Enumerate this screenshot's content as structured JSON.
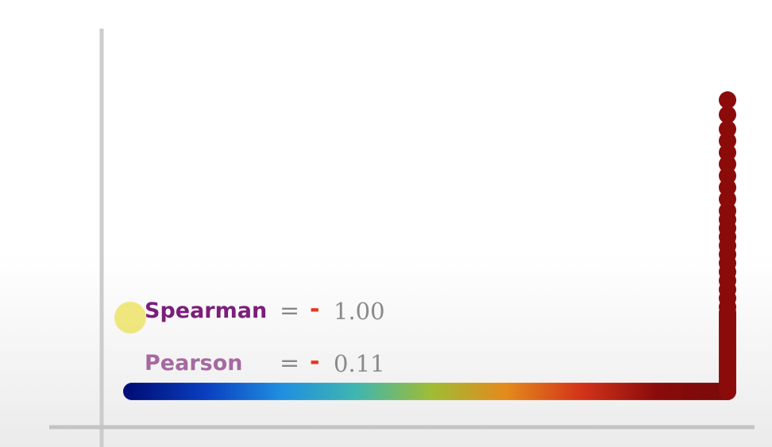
{
  "chart_data": {
    "type": "scatter",
    "title": "",
    "xlabel": "",
    "ylabel": "",
    "grid": false,
    "colormap": [
      "#00107a",
      "#0a3fc0",
      "#1f8fe0",
      "#3fb6b0",
      "#9fbc35",
      "#e48a1c",
      "#d3341a",
      "#8b0b0b",
      "#7a0a0a"
    ],
    "points": {
      "horizontal_segment": {
        "n": 200,
        "x_range": [
          1,
          200
        ],
        "y": 100
      },
      "vertical_tail": {
        "x": 200,
        "y_values": [
          100,
          99,
          98,
          97,
          96,
          95,
          94,
          93,
          92,
          91,
          90,
          89,
          88,
          87,
          86,
          85,
          84,
          83,
          82,
          81,
          80,
          79,
          78,
          77,
          76,
          75,
          74,
          73,
          71,
          68,
          65,
          62,
          59,
          56,
          53,
          50,
          47,
          44,
          41,
          38,
          34,
          30,
          26,
          22,
          18,
          14,
          10,
          5,
          0
        ]
      }
    },
    "marker_colors": {
      "tail": "#8b0b0b"
    }
  },
  "axis_color": "#cccccc",
  "stats": {
    "spearman": {
      "label": "Spearman",
      "equals": "=",
      "sign": "-",
      "value": "1.00"
    },
    "pearson": {
      "label": "Pearson",
      "equals": "=",
      "sign": "-",
      "value": "0.11"
    }
  },
  "colors": {
    "spearman_label": "#7b1e7a",
    "pearson_label": "#a569a0",
    "minus_sign": "#e8341c",
    "value_text": "#8a8a8a",
    "cursor": "#ece25a"
  }
}
